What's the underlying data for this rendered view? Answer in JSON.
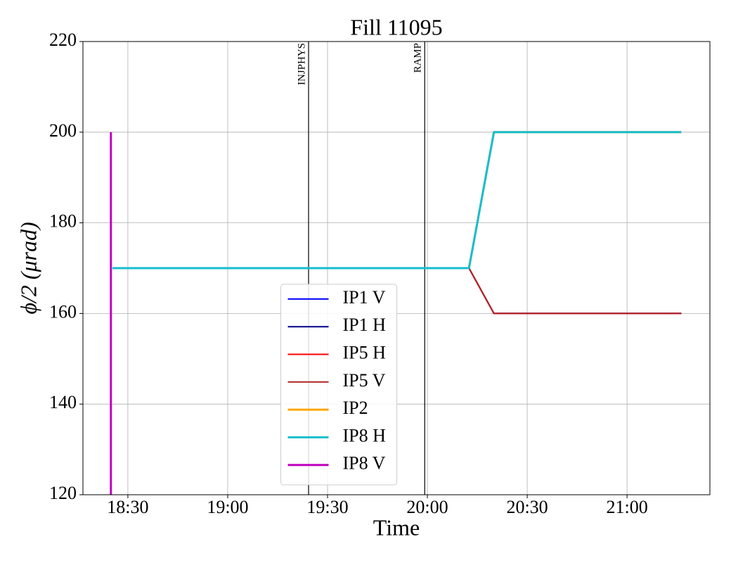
{
  "chart_data": {
    "type": "line",
    "title": "Fill 11095",
    "xlabel": "Time",
    "ylabel": "ϕ/2 (μrad)",
    "xlim": [
      1096.5,
      1284.9
    ],
    "ylim": [
      120,
      220
    ],
    "xticks": [
      {
        "value": 1110,
        "label": "18:30"
      },
      {
        "value": 1140,
        "label": "19:00"
      },
      {
        "value": 1170,
        "label": "19:30"
      },
      {
        "value": 1200,
        "label": "20:00"
      },
      {
        "value": 1230,
        "label": "20:30"
      },
      {
        "value": 1260,
        "label": "21:00"
      }
    ],
    "yticks": [
      120,
      140,
      160,
      180,
      200,
      220
    ],
    "grid": true,
    "legend": "lower center",
    "annotations": [
      {
        "label": "INJPHYS",
        "x": 1164.3
      },
      {
        "label": "RAMP",
        "x": 1199.2
      }
    ],
    "series": [
      {
        "name": "IP1 V",
        "color": "#0000ff",
        "linewidth": 2,
        "x": [
          1105.4,
          1212.5,
          1220,
          1276.3
        ],
        "values": [
          170,
          170,
          160,
          160
        ]
      },
      {
        "name": "IP1 H",
        "color": "#00008b",
        "linewidth": 2,
        "x": [
          1105.4,
          1212.5,
          1220,
          1276.3
        ],
        "values": [
          170,
          170,
          160,
          160
        ]
      },
      {
        "name": "IP5 H",
        "color": "#ff0000",
        "linewidth": 2,
        "x": [
          1105.4,
          1212.5,
          1220,
          1276.3
        ],
        "values": [
          170,
          170,
          160,
          160
        ]
      },
      {
        "name": "IP5 V",
        "color": "#b22222",
        "linewidth": 2,
        "x": [
          1105.4,
          1212.5,
          1220,
          1276.3
        ],
        "values": [
          170,
          170,
          160,
          160
        ]
      },
      {
        "name": "IP2",
        "color": "#ffa500",
        "linewidth": 3,
        "x": [
          1105.4,
          1212.5,
          1220,
          1276.3
        ],
        "values": [
          170,
          170,
          200,
          200
        ]
      },
      {
        "name": "IP8 H",
        "color": "#17becf",
        "linewidth": 3,
        "x": [
          1105.4,
          1212.5,
          1220,
          1276.3
        ],
        "values": [
          170,
          170,
          200,
          200
        ]
      },
      {
        "name": "IP8 V",
        "color": "#c000c0",
        "linewidth": 3,
        "x": [
          1104.9,
          1104.9
        ],
        "values": [
          200,
          120
        ]
      }
    ]
  }
}
